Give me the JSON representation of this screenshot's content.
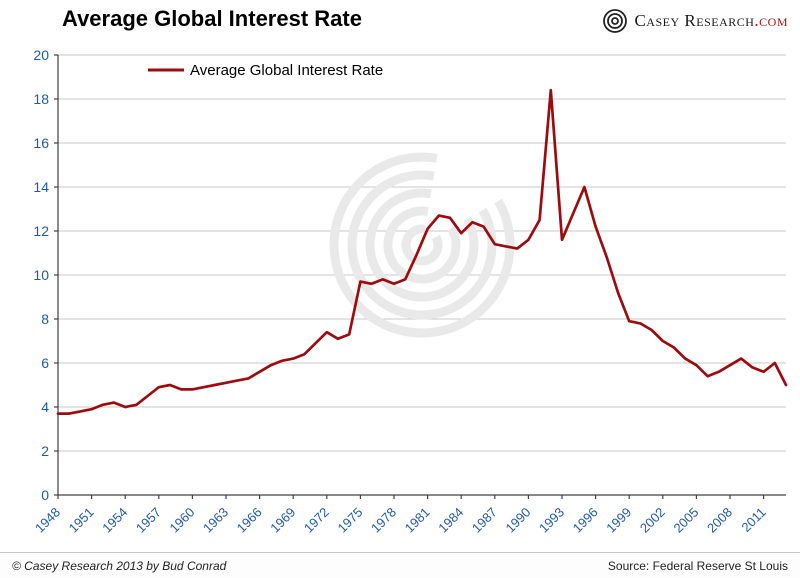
{
  "header": {
    "title": "Average Global Interest Rate"
  },
  "logo": {
    "icon": "concentric-spiral-icon",
    "text": "Casey Research",
    "suffix": ".com"
  },
  "footer": {
    "copyright": "© Casey Research 2013 by Bud Conrad",
    "source": "Source: Federal Reserve St Louis"
  },
  "chart_data": {
    "type": "line",
    "title": "Average Global Interest Rate",
    "legend_label": "Average Global Interest Rate",
    "legend_position": "top-left-inside",
    "grid": "horizontal",
    "line_color": "#9e0b0f",
    "axis_label_color": "#1f5aa9",
    "grid_color": "#c8c8c8",
    "axis_color": "#404040",
    "ylim": [
      0,
      20
    ],
    "y_ticks": [
      0,
      2,
      4,
      6,
      8,
      10,
      12,
      14,
      16,
      18,
      20
    ],
    "x_ticks": [
      1948,
      1951,
      1954,
      1957,
      1960,
      1963,
      1966,
      1969,
      1972,
      1975,
      1978,
      1981,
      1984,
      1987,
      1990,
      1993,
      1996,
      1999,
      2002,
      2005,
      2008,
      2011
    ],
    "x": [
      1948,
      1949,
      1950,
      1951,
      1952,
      1953,
      1954,
      1955,
      1956,
      1957,
      1958,
      1959,
      1960,
      1961,
      1962,
      1963,
      1964,
      1965,
      1966,
      1967,
      1968,
      1969,
      1970,
      1971,
      1972,
      1973,
      1974,
      1975,
      1976,
      1977,
      1978,
      1979,
      1980,
      1981,
      1982,
      1983,
      1984,
      1985,
      1986,
      1987,
      1988,
      1989,
      1990,
      1991,
      1992,
      1993,
      1994,
      1995,
      1996,
      1997,
      1998,
      1999,
      2000,
      2001,
      2002,
      2003,
      2004,
      2005,
      2006,
      2007,
      2008,
      2009,
      2010,
      2011,
      2012,
      2013
    ],
    "series": [
      {
        "name": "Average Global Interest Rate",
        "values": [
          3.7,
          3.7,
          3.8,
          3.9,
          4.1,
          4.2,
          4.0,
          4.1,
          4.5,
          4.9,
          5.0,
          4.8,
          4.8,
          4.9,
          5.0,
          5.1,
          5.2,
          5.3,
          5.6,
          5.9,
          6.1,
          6.2,
          6.4,
          6.9,
          7.4,
          7.1,
          7.3,
          9.7,
          9.6,
          9.8,
          9.6,
          9.8,
          10.9,
          12.1,
          12.7,
          12.6,
          11.9,
          12.4,
          12.2,
          11.4,
          11.3,
          11.2,
          11.6,
          12.5,
          18.4,
          11.6,
          12.8,
          14.0,
          12.2,
          10.8,
          9.2,
          7.9,
          7.8,
          7.5,
          7.0,
          6.7,
          6.2,
          5.9,
          5.4,
          5.6,
          5.9,
          6.2,
          5.8,
          5.6,
          6.0,
          5.0
        ]
      }
    ]
  }
}
